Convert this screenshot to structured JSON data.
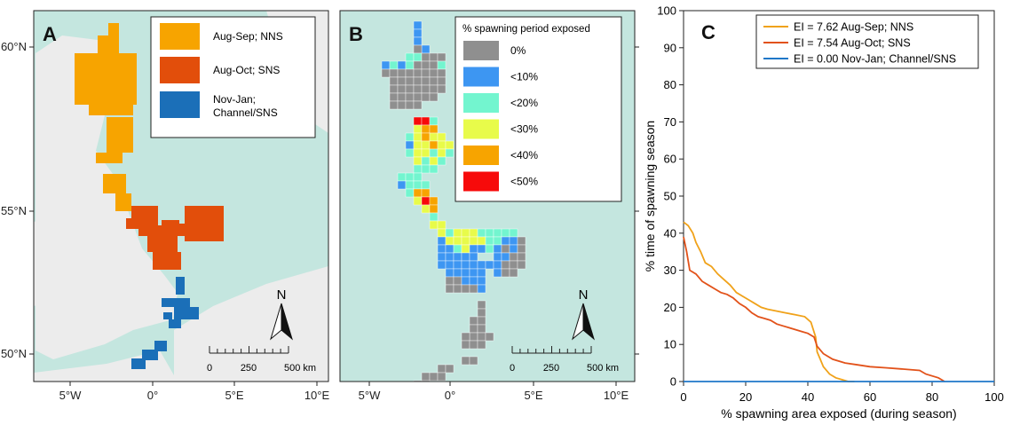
{
  "panels": {
    "A": {
      "label": "A",
      "legend": [
        {
          "label": "Aug-Sep; NNS",
          "color": "#f7a400"
        },
        {
          "label": "Aug-Oct; SNS",
          "color": "#e24e0b"
        },
        {
          "label": "Nov-Jan;",
          "label2": "Channel/SNS",
          "color": "#1b6fb8"
        }
      ]
    },
    "B": {
      "label": "B",
      "legend_title": "% spawning period exposed",
      "legend": [
        {
          "label": "0%",
          "color": "#8f8f8f"
        },
        {
          "label": "<10%",
          "color": "#3d96f2"
        },
        {
          "label": "<20%",
          "color": "#73f5cf"
        },
        {
          "label": "<30%",
          "color": "#e8fb4a"
        },
        {
          "label": "<40%",
          "color": "#f7a400"
        },
        {
          "label": "<50%",
          "color": "#f70a0a"
        }
      ]
    },
    "map": {
      "north_label": "N",
      "scale_labels": [
        "0",
        "250",
        "500 km"
      ],
      "lon_ticks": [
        "5°W",
        "0°",
        "5°E",
        "10°E"
      ],
      "lat_ticks": [
        "60°N",
        "55°N",
        "50°N"
      ]
    }
  },
  "chart_data": {
    "type": "line",
    "panel_label": "C",
    "xlabel": "% spawning area exposed (during season)",
    "ylabel": "% time of spawning season",
    "xlim": [
      0,
      100
    ],
    "ylim": [
      0,
      100
    ],
    "xticks": [
      0,
      20,
      40,
      60,
      80,
      100
    ],
    "yticks": [
      0,
      10,
      20,
      30,
      40,
      50,
      60,
      70,
      80,
      90,
      100
    ],
    "legend_position": "top-right",
    "grid": false,
    "series": [
      {
        "name": "EI = 7.62 Aug-Sep; NNS",
        "color": "#f0a21a",
        "points": [
          [
            0,
            43
          ],
          [
            1.5,
            42
          ],
          [
            3,
            40
          ],
          [
            4,
            37.5
          ],
          [
            5.5,
            35
          ],
          [
            7,
            32
          ],
          [
            9,
            31
          ],
          [
            11,
            29
          ],
          [
            13,
            27.5
          ],
          [
            15,
            26
          ],
          [
            17,
            24
          ],
          [
            19,
            23
          ],
          [
            21,
            22
          ],
          [
            23,
            21
          ],
          [
            25,
            20
          ],
          [
            27,
            19.5
          ],
          [
            30,
            19
          ],
          [
            33,
            18.5
          ],
          [
            36,
            18
          ],
          [
            39,
            17.5
          ],
          [
            41,
            16
          ],
          [
            42.5,
            12
          ],
          [
            43,
            8
          ],
          [
            44,
            6
          ],
          [
            45,
            4
          ],
          [
            47,
            2
          ],
          [
            49,
            1
          ],
          [
            51,
            0.5
          ],
          [
            53,
            0
          ],
          [
            55,
            0
          ]
        ]
      },
      {
        "name": "EI = 7.54 Aug-Oct;  SNS",
        "color": "#e2521a",
        "points": [
          [
            0,
            39
          ],
          [
            1,
            35
          ],
          [
            2,
            30
          ],
          [
            4,
            29
          ],
          [
            6,
            27
          ],
          [
            8,
            26
          ],
          [
            10,
            25
          ],
          [
            12,
            24
          ],
          [
            14,
            23.5
          ],
          [
            16,
            22.5
          ],
          [
            18,
            21
          ],
          [
            20,
            20
          ],
          [
            22,
            18.5
          ],
          [
            24,
            17.5
          ],
          [
            26,
            17
          ],
          [
            28,
            16.5
          ],
          [
            30,
            15.5
          ],
          [
            32,
            15
          ],
          [
            34,
            14.5
          ],
          [
            36,
            14
          ],
          [
            38,
            13.5
          ],
          [
            40,
            13
          ],
          [
            42,
            12
          ],
          [
            43,
            9.5
          ],
          [
            45,
            7.5
          ],
          [
            48,
            6
          ],
          [
            52,
            5
          ],
          [
            56,
            4.5
          ],
          [
            60,
            4
          ],
          [
            65,
            3.7
          ],
          [
            70,
            3.4
          ],
          [
            76,
            3
          ],
          [
            78,
            2
          ],
          [
            82,
            1
          ],
          [
            83,
            0.5
          ],
          [
            84,
            0
          ]
        ]
      },
      {
        "name": "EI = 0.00 Nov-Jan;  Channel/SNS",
        "color": "#1f77c8",
        "points": [
          [
            0,
            0
          ],
          [
            100,
            0
          ]
        ]
      }
    ]
  }
}
